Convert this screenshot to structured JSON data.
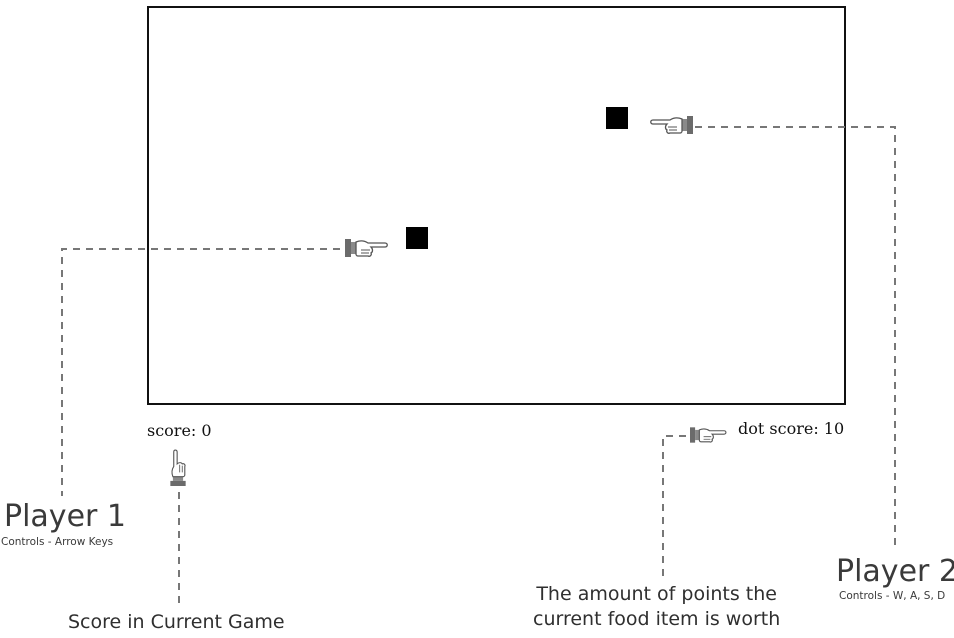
{
  "hud": {
    "score_label": "score: 0",
    "dot_score_label": "dot score: 10"
  },
  "annotations": {
    "player1_title": "Player 1",
    "player1_controls": "Controls - Arrow Keys",
    "player2_title": "Player 2",
    "player2_controls": "Controls - W, A, S, D",
    "score_note": "Score in Current Game",
    "dot_note_line1": "The amount of points the",
    "dot_note_line2": "current food item is worth"
  },
  "icons": {
    "pointer": "pointing-hand-icon"
  },
  "colors": {
    "block": "#000000",
    "border": "#111111",
    "leader_line": "#777777",
    "hand": "#6b6b6b"
  }
}
